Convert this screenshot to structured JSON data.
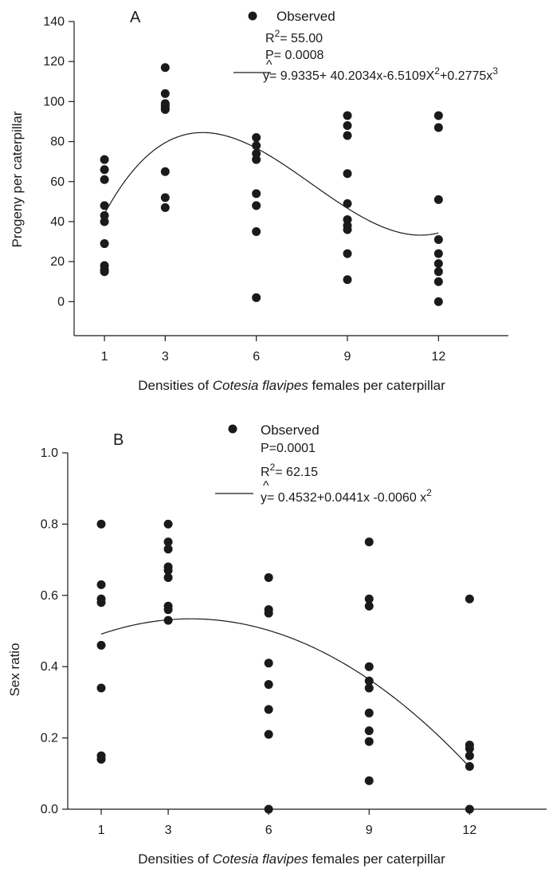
{
  "chart_data": [
    {
      "type": "scatter",
      "panel_label": "A",
      "xlabel_parts": [
        "Densities of ",
        "Cotesia flavipes",
        " females per caterpillar"
      ],
      "ylabel": "Progeny per caterpillar",
      "x_ticks": [
        1,
        3,
        6,
        9,
        12
      ],
      "y_ticks": [
        "0",
        "20",
        "40",
        "60",
        "80",
        "100",
        "120",
        "140"
      ],
      "xlim": [
        0,
        14.3
      ],
      "ylim": [
        -17,
        140
      ],
      "grid": false,
      "legend": {
        "observed_label": "Observed",
        "r2_prefix": "R",
        "r2_sup": "2",
        "r2_value": "= 55.00",
        "p_text": "P= 0.0008",
        "hat": "^",
        "eq_parts": [
          "y= 9.9335+ 40.2034x-6.5109X",
          "2",
          "+0.2775x",
          "3"
        ]
      },
      "series": [
        {
          "kind": "observed",
          "points": [
            [
              1,
              71
            ],
            [
              1,
              66
            ],
            [
              1,
              61
            ],
            [
              1,
              48
            ],
            [
              1,
              43
            ],
            [
              1,
              40
            ],
            [
              1,
              29
            ],
            [
              1,
              18
            ],
            [
              1,
              16
            ],
            [
              1,
              15
            ],
            [
              3,
              117
            ],
            [
              3,
              104
            ],
            [
              3,
              99
            ],
            [
              3,
              98
            ],
            [
              3,
              97
            ],
            [
              3,
              96
            ],
            [
              3,
              65
            ],
            [
              3,
              52
            ],
            [
              3,
              47
            ],
            [
              6,
              82
            ],
            [
              6,
              78
            ],
            [
              6,
              74
            ],
            [
              6,
              71
            ],
            [
              6,
              54
            ],
            [
              6,
              48
            ],
            [
              6,
              35
            ],
            [
              6,
              2
            ],
            [
              9,
              93
            ],
            [
              9,
              88
            ],
            [
              9,
              83
            ],
            [
              9,
              64
            ],
            [
              9,
              49
            ],
            [
              9,
              41
            ],
            [
              9,
              38
            ],
            [
              9,
              36
            ],
            [
              9,
              24
            ],
            [
              9,
              11
            ],
            [
              12,
              93
            ],
            [
              12,
              87
            ],
            [
              12,
              51
            ],
            [
              12,
              31
            ],
            [
              12,
              24
            ],
            [
              12,
              19
            ],
            [
              12,
              15
            ],
            [
              12,
              10
            ],
            [
              12,
              0
            ]
          ]
        },
        {
          "kind": "fitted",
          "coefficients": [
            9.9335,
            40.2034,
            -6.5109,
            0.2775
          ],
          "x_range": [
            1,
            12
          ]
        }
      ]
    },
    {
      "type": "scatter",
      "panel_label": "B",
      "xlabel_parts": [
        "Densities of ",
        "Cotesia flavipes",
        " females per caterpillar"
      ],
      "ylabel": "Sex ratio",
      "x_ticks": [
        1,
        3,
        6,
        9,
        12
      ],
      "y_ticks": [
        "0.0",
        "0.2",
        "0.4",
        "0.6",
        "0.8",
        "1.0"
      ],
      "xlim": [
        0,
        14.3
      ],
      "ylim": [
        0,
        1.0
      ],
      "grid": false,
      "legend": {
        "observed_label": "Observed",
        "p_text": "P=0.0001",
        "r2_prefix": "R",
        "r2_sup": "2",
        "r2_value": "= 62.15",
        "hat": "^",
        "eq_parts": [
          "y= 0.4532+0.0441x -0.0060 x",
          "2"
        ]
      },
      "series": [
        {
          "kind": "observed",
          "points": [
            [
              1,
              0.8
            ],
            [
              1,
              0.63
            ],
            [
              1,
              0.59
            ],
            [
              1,
              0.58
            ],
            [
              1,
              0.46
            ],
            [
              1,
              0.34
            ],
            [
              1,
              0.15
            ],
            [
              1,
              0.14
            ],
            [
              3,
              0.8
            ],
            [
              3,
              0.75
            ],
            [
              3,
              0.73
            ],
            [
              3,
              0.68
            ],
            [
              3,
              0.67
            ],
            [
              3,
              0.65
            ],
            [
              3,
              0.57
            ],
            [
              3,
              0.56
            ],
            [
              3,
              0.53
            ],
            [
              6,
              0.65
            ],
            [
              6,
              0.56
            ],
            [
              6,
              0.55
            ],
            [
              6,
              0.41
            ],
            [
              6,
              0.35
            ],
            [
              6,
              0.28
            ],
            [
              6,
              0.21
            ],
            [
              6,
              0.0
            ],
            [
              9,
              0.75
            ],
            [
              9,
              0.59
            ],
            [
              9,
              0.57
            ],
            [
              9,
              0.4
            ],
            [
              9,
              0.36
            ],
            [
              9,
              0.34
            ],
            [
              9,
              0.27
            ],
            [
              9,
              0.22
            ],
            [
              9,
              0.19
            ],
            [
              9,
              0.08
            ],
            [
              12,
              0.59
            ],
            [
              12,
              0.18
            ],
            [
              12,
              0.17
            ],
            [
              12,
              0.15
            ],
            [
              12,
              0.12
            ],
            [
              12,
              0.0
            ]
          ]
        },
        {
          "kind": "fitted",
          "coefficients": [
            0.4532,
            0.0441,
            -0.006
          ],
          "x_range": [
            1,
            12
          ]
        }
      ]
    }
  ]
}
